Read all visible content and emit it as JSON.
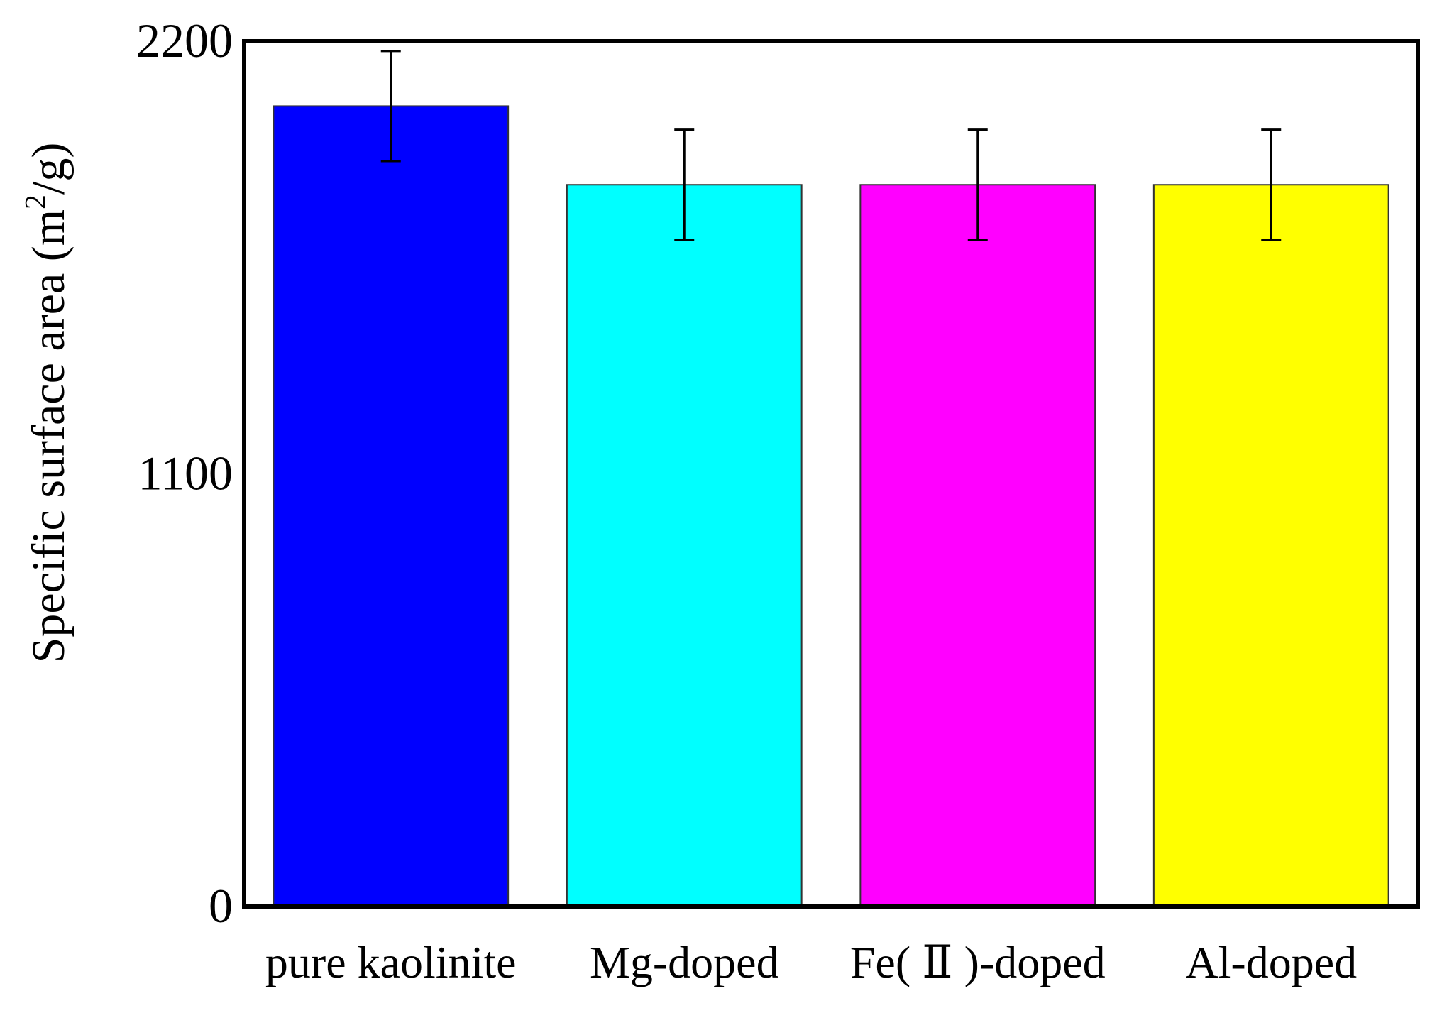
{
  "chart_data": {
    "type": "bar",
    "title": "",
    "xlabel": "",
    "ylabel": {
      "prefix": "Specific surface area (m",
      "superscript": "2",
      "suffix": "/g)"
    },
    "categories": [
      "pure kaolinite",
      "Mg-doped",
      "Fe( Ⅱ )-doped",
      "Al-doped"
    ],
    "values": [
      2035,
      1835,
      1835,
      1835
    ],
    "error": [
      140,
      140,
      140,
      140
    ],
    "colors": [
      "#0000ff",
      "#00ffff",
      "#ff00ff",
      "#ffff00"
    ],
    "ylim": [
      0,
      2200
    ],
    "yticks": [
      0,
      1100,
      2200
    ],
    "grid": false,
    "legend": "none"
  }
}
